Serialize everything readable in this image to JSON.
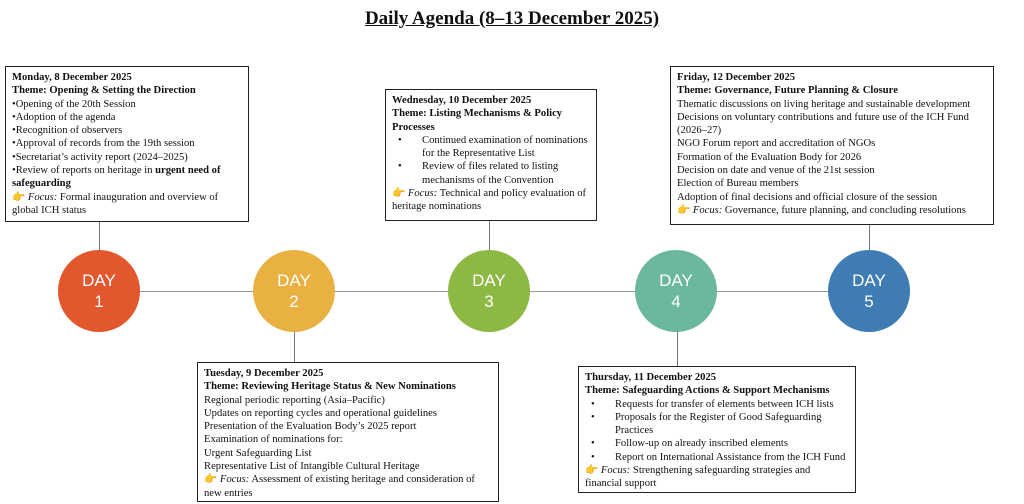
{
  "title": "Daily Agenda (8–13 December 2025)",
  "colors": {
    "day1": "#E2572E",
    "day2": "#E8B142",
    "day3": "#8DB843",
    "day4": "#6CB7A0",
    "day5": "#3E7CB3"
  },
  "days": [
    {
      "label": "DAY",
      "num": "1"
    },
    {
      "label": "DAY",
      "num": "2"
    },
    {
      "label": "DAY",
      "num": "3"
    },
    {
      "label": "DAY",
      "num": "4"
    },
    {
      "label": "DAY",
      "num": "5"
    }
  ],
  "monday": {
    "date": "Monday, 8 December 2025",
    "theme": "Theme: Opening & Setting the Direction",
    "items": [
      "•Opening of the 20th Session",
      "•Adoption of the agenda",
      "•Recognition of observers",
      "•Approval of records from the 19th session",
      "•Secretariat’s activity report (2024–2025)"
    ],
    "last_item": "•Review of reports on heritage in ",
    "last_item_bold": "urgent need of safeguarding",
    "focus_label": "Focus:",
    "focus": " Formal inauguration and overview of global ICH status"
  },
  "tuesday": {
    "date": "Tuesday, 9 December 2025",
    "theme": "Theme: Reviewing Heritage Status & New Nominations",
    "items": [
      "Regional periodic reporting (Asia–Pacific)",
      "Updates on reporting cycles and operational guidelines",
      "Presentation of the Evaluation Body’s 2025 report",
      "Examination of nominations for:",
      "Urgent Safeguarding List",
      "Representative List of Intangible Cultural Heritage"
    ],
    "focus_label": "Focus:",
    "focus": " Assessment of existing heritage and consideration of new entries"
  },
  "wednesday": {
    "date": "Wednesday, 10 December 2025",
    "theme": "Theme: Listing Mechanisms & Policy Processes",
    "items": [
      "Continued examination of nominations for the Representative List",
      "Review of files related to listing mechanisms of the Convention"
    ],
    "focus_label": "Focus:",
    "focus": " Technical and policy evaluation of heritage nominations"
  },
  "thursday": {
    "date": "Thursday, 11 December 2025",
    "theme": "Theme: Safeguarding Actions & Support Mechanisms",
    "items": [
      "Requests for transfer of elements between ICH lists",
      "Proposals for the Register of Good Safeguarding Practices",
      "Follow-up on already inscribed elements",
      "Report on International Assistance from the ICH Fund"
    ],
    "focus_label": "Focus:",
    "focus": " Strengthening safeguarding strategies and financial support"
  },
  "friday": {
    "date": "Friday, 12 December 2025",
    "theme": "Theme: Governance, Future Planning & Closure",
    "items": [
      "Thematic discussions on living heritage and sustainable development",
      "Decisions on voluntary contributions and future use of the ICH Fund (2026–27)",
      "NGO Forum report and accreditation of NGOs",
      "Formation of the Evaluation Body for 2026",
      "Decision on date and venue of the 21st session",
      "Election of Bureau members",
      "Adoption of final decisions and official closure of the session"
    ],
    "focus_label": "Focus:",
    "focus": " Governance, future planning, and concluding resolutions"
  }
}
